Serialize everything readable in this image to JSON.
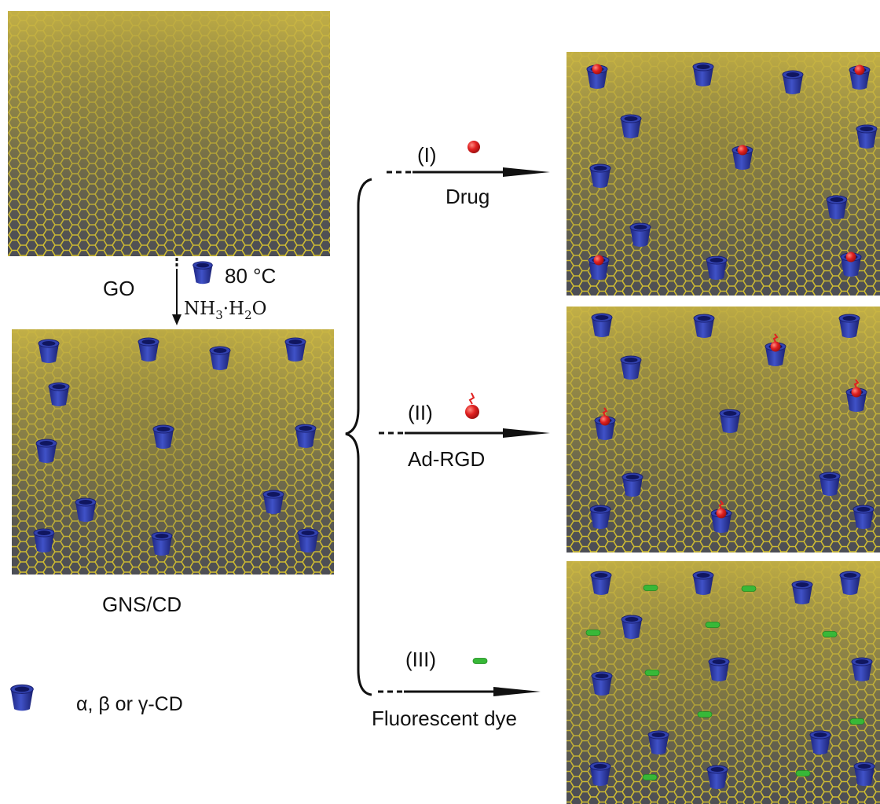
{
  "labels": {
    "go": "GO",
    "temperature": "80 °C",
    "reagent_main": "NH",
    "reagent_sub1": "3",
    "reagent_mid": "·H",
    "reagent_sub2": "2",
    "reagent_end": "O",
    "gns_cd": "GNS/CD",
    "legend_text": "α, β or  γ-CD"
  },
  "steps": [
    {
      "roman": "(I)",
      "name": "Drug",
      "guest": "red-sphere"
    },
    {
      "roman": "(II)",
      "name": "Ad-RGD",
      "guest": "red-sphere-with-tail"
    },
    {
      "roman": "(III)",
      "name": "Fluorescent dye",
      "guest": "green-capsule"
    }
  ],
  "colors": {
    "sheet": "#b8a838",
    "mesh": "#d8c430",
    "cyclodextrin": "#2d3aa8",
    "drug": "#e02020",
    "dye": "#38b838"
  }
}
